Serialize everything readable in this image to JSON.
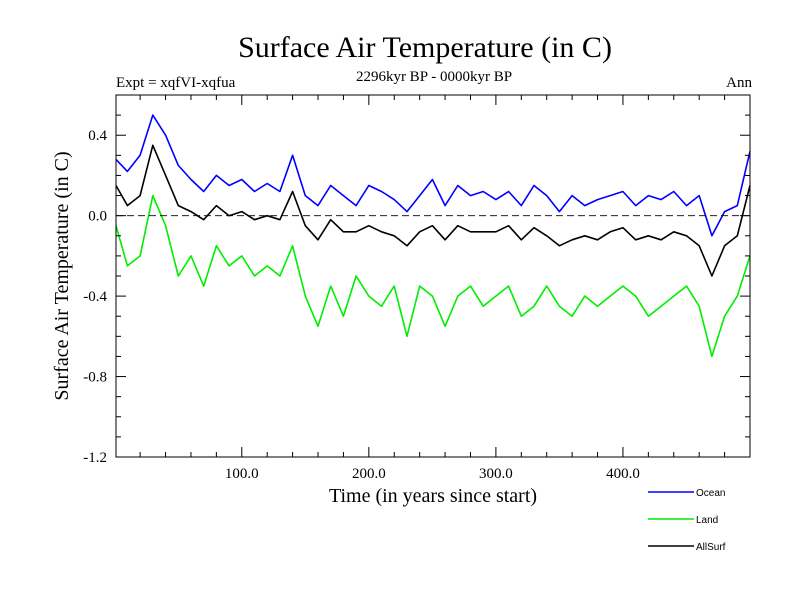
{
  "chart_data": {
    "type": "line",
    "title": "Surface Air Temperature (in C)",
    "subtitle": "2296kyr BP - 0000kyr BP",
    "expt_label": "Expt = xqfVI-xqfua",
    "season_label": "Ann",
    "xlabel": "Time (in years since start)",
    "ylabel": "Surface Air Temperature (in C)",
    "xlim": [
      1,
      500
    ],
    "ylim": [
      -1.2,
      0.6
    ],
    "xticks": [
      100,
      200,
      300,
      400
    ],
    "xtick_labels": [
      "100.0",
      "200.0",
      "300.0",
      "400.0"
    ],
    "yticks": [
      -1.2,
      -0.8,
      -0.4,
      0.0,
      0.4
    ],
    "ytick_labels": [
      "-1.2",
      "-0.8",
      "-0.4",
      "0.0",
      "0.4"
    ],
    "zero_line": true,
    "legend_position": "bottom-right",
    "series": [
      {
        "name": "Ocean",
        "color": "#0000ff",
        "x": [
          1,
          10,
          20,
          30,
          40,
          50,
          60,
          70,
          80,
          90,
          100,
          110,
          120,
          130,
          140,
          150,
          160,
          170,
          180,
          190,
          200,
          210,
          220,
          230,
          240,
          250,
          260,
          270,
          280,
          290,
          300,
          310,
          320,
          330,
          340,
          350,
          360,
          370,
          380,
          390,
          400,
          410,
          420,
          430,
          440,
          450,
          460,
          470,
          480,
          490,
          500
        ],
        "values": [
          0.28,
          0.22,
          0.3,
          0.5,
          0.4,
          0.25,
          0.18,
          0.12,
          0.2,
          0.15,
          0.18,
          0.12,
          0.16,
          0.12,
          0.3,
          0.1,
          0.05,
          0.15,
          0.1,
          0.05,
          0.15,
          0.12,
          0.08,
          0.02,
          0.1,
          0.18,
          0.05,
          0.15,
          0.1,
          0.12,
          0.08,
          0.12,
          0.05,
          0.15,
          0.1,
          0.02,
          0.1,
          0.05,
          0.08,
          0.1,
          0.12,
          0.05,
          0.1,
          0.08,
          0.12,
          0.05,
          0.1,
          -0.1,
          0.02,
          0.05,
          0.32
        ]
      },
      {
        "name": "Land",
        "color": "#00ee00",
        "x": [
          1,
          10,
          20,
          30,
          40,
          50,
          60,
          70,
          80,
          90,
          100,
          110,
          120,
          130,
          140,
          150,
          160,
          170,
          180,
          190,
          200,
          210,
          220,
          230,
          240,
          250,
          260,
          270,
          280,
          290,
          300,
          310,
          320,
          330,
          340,
          350,
          360,
          370,
          380,
          390,
          400,
          410,
          420,
          430,
          440,
          450,
          460,
          470,
          480,
          490,
          500
        ],
        "values": [
          -0.05,
          -0.25,
          -0.2,
          0.1,
          -0.05,
          -0.3,
          -0.2,
          -0.35,
          -0.15,
          -0.25,
          -0.2,
          -0.3,
          -0.25,
          -0.3,
          -0.15,
          -0.4,
          -0.55,
          -0.35,
          -0.5,
          -0.3,
          -0.4,
          -0.45,
          -0.35,
          -0.6,
          -0.35,
          -0.4,
          -0.55,
          -0.4,
          -0.35,
          -0.45,
          -0.4,
          -0.35,
          -0.5,
          -0.45,
          -0.35,
          -0.45,
          -0.5,
          -0.4,
          -0.45,
          -0.4,
          -0.35,
          -0.4,
          -0.5,
          -0.45,
          -0.4,
          -0.35,
          -0.45,
          -0.7,
          -0.5,
          -0.4,
          -0.2
        ]
      },
      {
        "name": "AllSurf",
        "color": "#000000",
        "x": [
          1,
          10,
          20,
          30,
          40,
          50,
          60,
          70,
          80,
          90,
          100,
          110,
          120,
          130,
          140,
          150,
          160,
          170,
          180,
          190,
          200,
          210,
          220,
          230,
          240,
          250,
          260,
          270,
          280,
          290,
          300,
          310,
          320,
          330,
          340,
          350,
          360,
          370,
          380,
          390,
          400,
          410,
          420,
          430,
          440,
          450,
          460,
          470,
          480,
          490,
          500
        ],
        "values": [
          0.15,
          0.05,
          0.1,
          0.35,
          0.2,
          0.05,
          0.02,
          -0.02,
          0.05,
          0.0,
          0.02,
          -0.02,
          0.0,
          -0.02,
          0.12,
          -0.05,
          -0.12,
          -0.02,
          -0.08,
          -0.08,
          -0.05,
          -0.08,
          -0.1,
          -0.15,
          -0.08,
          -0.05,
          -0.12,
          -0.05,
          -0.08,
          -0.08,
          -0.08,
          -0.05,
          -0.12,
          -0.06,
          -0.1,
          -0.15,
          -0.12,
          -0.1,
          -0.12,
          -0.08,
          -0.06,
          -0.12,
          -0.1,
          -0.12,
          -0.08,
          -0.1,
          -0.15,
          -0.3,
          -0.15,
          -0.1,
          0.15
        ]
      }
    ]
  }
}
